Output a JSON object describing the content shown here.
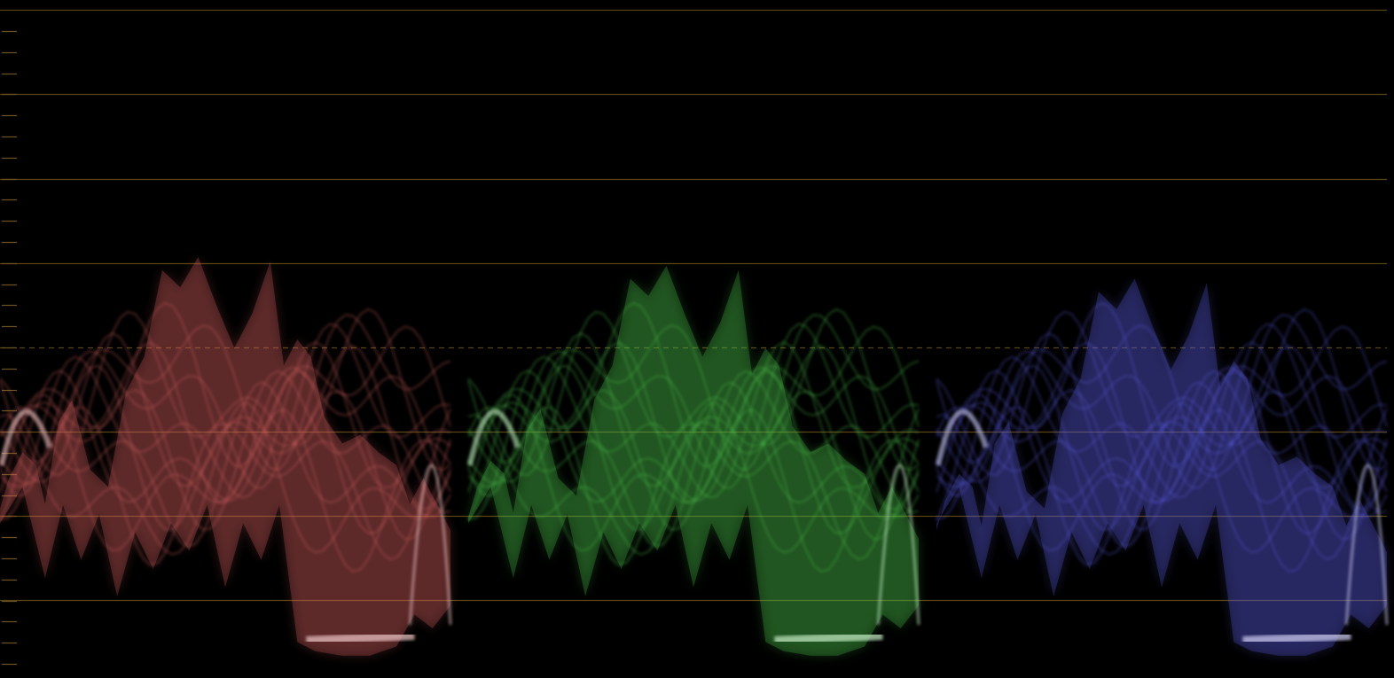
{
  "scope": {
    "type": "RGB Parade waveform",
    "background": "#000000",
    "graticule_color": "#5a4514",
    "tick_color": "#6b5320",
    "parades": [
      {
        "channel": "red",
        "color": "#d86060",
        "highlight": "#f0c8c8"
      },
      {
        "channel": "green",
        "color": "#4cc24c",
        "highlight": "#c8f0c8"
      },
      {
        "channel": "blue",
        "color": "#5a5ae0",
        "highlight": "#d0d0f5"
      }
    ]
  }
}
